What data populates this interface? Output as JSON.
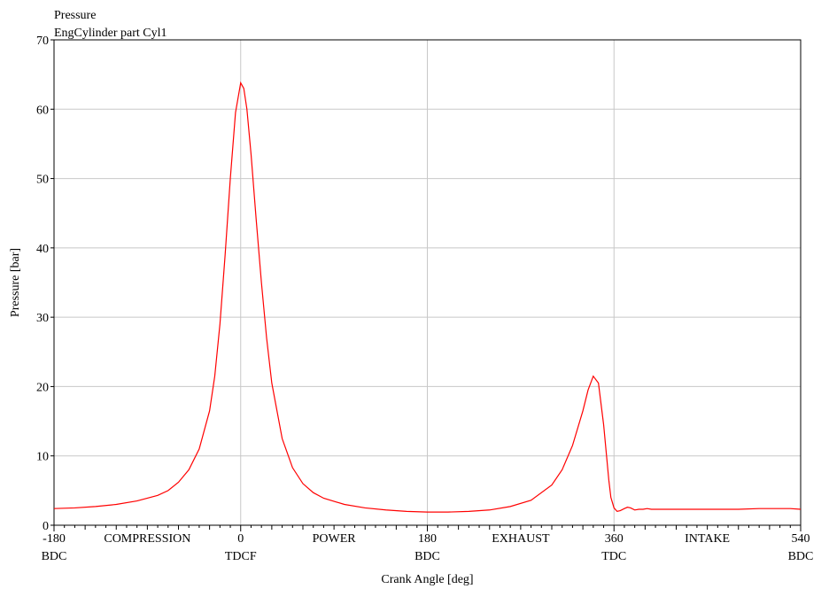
{
  "chart_data": {
    "type": "line",
    "title": "Pressure",
    "subtitle": "EngCylinder part Cyl1",
    "xlabel": "Crank Angle [deg]",
    "ylabel": "Pressure [bar]",
    "xlim": [
      -180,
      540
    ],
    "ylim": [
      0,
      70
    ],
    "grid": true,
    "line_color": "#ff0000",
    "grid_color": "#c8c8c8",
    "x_ticks": [
      {
        "value": -180,
        "label": "-180",
        "sublabel": "BDC"
      },
      {
        "value": 0,
        "label": "0",
        "sublabel": "TDCF"
      },
      {
        "value": 180,
        "label": "180",
        "sublabel": "BDC"
      },
      {
        "value": 360,
        "label": "360",
        "sublabel": "TDC"
      },
      {
        "value": 540,
        "label": "540",
        "sublabel": "BDC"
      }
    ],
    "y_ticks": [
      {
        "value": 0,
        "label": "0"
      },
      {
        "value": 10,
        "label": "10"
      },
      {
        "value": 20,
        "label": "20"
      },
      {
        "value": 30,
        "label": "30"
      },
      {
        "value": 40,
        "label": "40"
      },
      {
        "value": 50,
        "label": "50"
      },
      {
        "value": 60,
        "label": "60"
      },
      {
        "value": 70,
        "label": "70"
      }
    ],
    "phase_labels": [
      {
        "value": -90,
        "label": "COMPRESSION"
      },
      {
        "value": 90,
        "label": "POWER"
      },
      {
        "value": 270,
        "label": "EXHAUST"
      },
      {
        "value": 450,
        "label": "INTAKE"
      }
    ],
    "series": [
      {
        "x": [
          -180,
          -160,
          -140,
          -120,
          -100,
          -80,
          -70,
          -60,
          -50,
          -40,
          -30,
          -25,
          -20,
          -15,
          -10,
          -5,
          0,
          3,
          6,
          10,
          15,
          20,
          25,
          30,
          40,
          50,
          60,
          70,
          80,
          100,
          120,
          140,
          160,
          180,
          200,
          220,
          240,
          260,
          280,
          300,
          310,
          320,
          330,
          335,
          340,
          345,
          350,
          355,
          357,
          360,
          363,
          366,
          370,
          373,
          376,
          380,
          384,
          388,
          392,
          396,
          400,
          410,
          420,
          440,
          460,
          480,
          500,
          520,
          530,
          540
        ],
        "y": [
          2.4,
          2.5,
          2.7,
          3.0,
          3.5,
          4.3,
          5.0,
          6.2,
          8.0,
          11.0,
          16.5,
          21.5,
          29.0,
          39.0,
          50.0,
          59.5,
          63.8,
          63.0,
          60.0,
          53.5,
          44.0,
          35.0,
          27.0,
          20.5,
          12.5,
          8.3,
          6.0,
          4.7,
          3.9,
          3.0,
          2.5,
          2.2,
          2.0,
          1.9,
          1.9,
          2.0,
          2.2,
          2.7,
          3.6,
          5.8,
          8.0,
          11.5,
          16.5,
          19.5,
          21.5,
          20.5,
          14.5,
          6.5,
          4.0,
          2.5,
          2.0,
          2.1,
          2.4,
          2.6,
          2.5,
          2.2,
          2.3,
          2.3,
          2.4,
          2.3,
          2.3,
          2.3,
          2.3,
          2.3,
          2.3,
          2.3,
          2.4,
          2.4,
          2.4,
          2.3
        ]
      }
    ]
  }
}
